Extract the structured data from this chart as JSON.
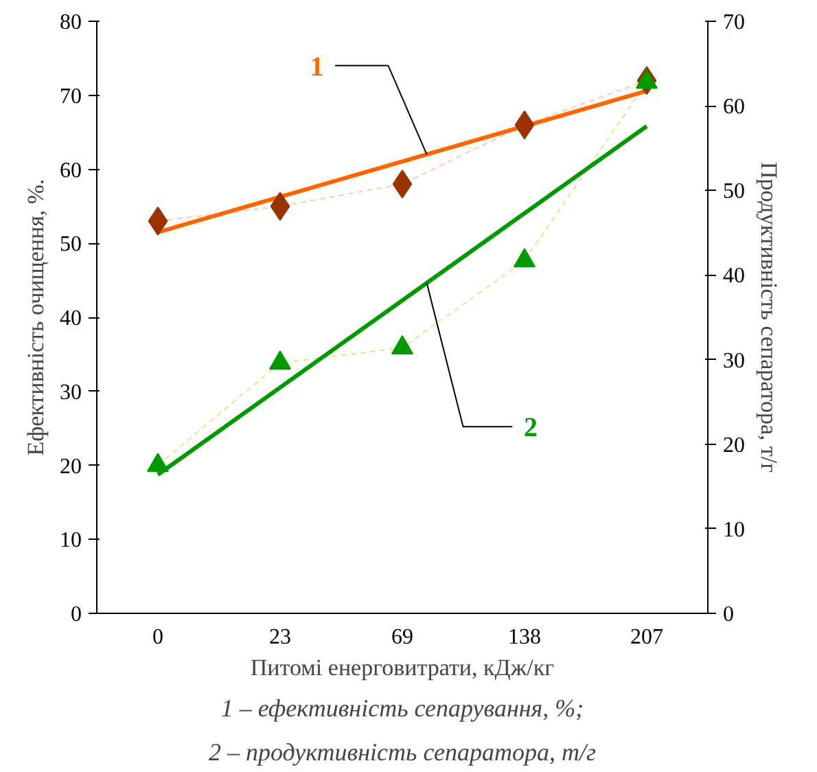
{
  "chart_data": {
    "type": "scatter",
    "xlabel": "Питомі енерговитрати, кДж/кг",
    "ylabel": "Ефективність очищення, %.",
    "y2label": "Продуктивність сепаратора, т/г",
    "categories": [
      "0",
      "23",
      "69",
      "138",
      "207"
    ],
    "ylim": [
      0,
      80
    ],
    "yticks": [
      0,
      10,
      20,
      30,
      40,
      50,
      60,
      70,
      80
    ],
    "y2lim": [
      0,
      70
    ],
    "y2ticks": [
      0,
      10,
      20,
      30,
      40,
      50,
      60,
      70
    ],
    "grid": false,
    "series": [
      {
        "type": "line",
        "color": "#f8cbad",
        "line_style": "dashed",
        "values": [
          53,
          55,
          58,
          66,
          72
        ]
      },
      {
        "type": "line",
        "color": "#e6e68a",
        "line_style": "dashed",
        "axis": "y2",
        "values": [
          17.5,
          29.6,
          31.4,
          41.7,
          62.8
        ]
      },
      {
        "type": "line",
        "name": "1",
        "color": "#ff6600",
        "line_style": "solid",
        "x": [
          "0",
          "207"
        ],
        "values": [
          51.5,
          70.6
        ]
      },
      {
        "type": "line",
        "name": "2",
        "color": "#009900",
        "line_style": "solid",
        "axis": "y2",
        "x": [
          "0",
          "207"
        ],
        "values": [
          16.4,
          57.6
        ]
      },
      {
        "marker": "diamond",
        "color": "#993300",
        "values": [
          53,
          55,
          58,
          66,
          72
        ]
      },
      {
        "marker": "triangle",
        "color": "#009900",
        "axis": "y2",
        "values": [
          17.5,
          29.6,
          31.4,
          41.7,
          62.8
        ]
      }
    ],
    "annotations": [
      "1 – ефективність сепарування, %;",
      "2 – продуктивність сепаратора, т/г"
    ]
  }
}
